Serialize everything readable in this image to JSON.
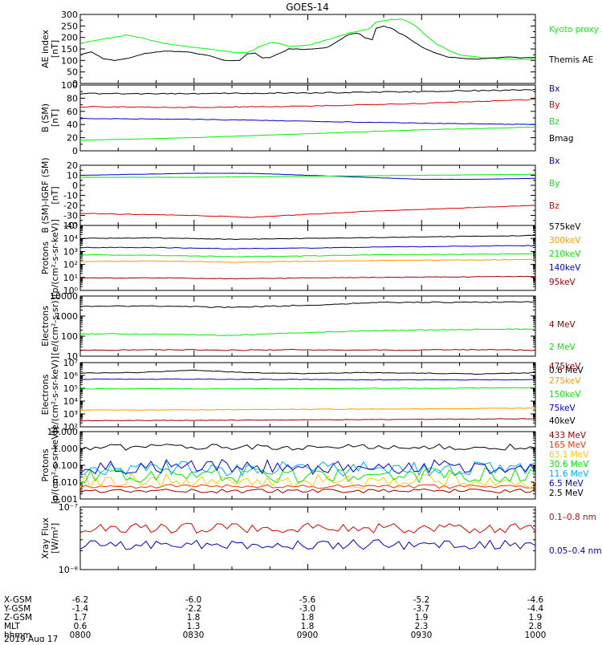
{
  "title": "GOES-14",
  "chart_data": [
    {
      "type": "line",
      "ylabel": "AE index [nT]",
      "ylim": [
        0,
        300
      ],
      "yscale": "linear",
      "yticks": [
        "0",
        "50",
        "100",
        "150",
        "200",
        "250",
        "300"
      ],
      "grid": false,
      "legend_placement": "right",
      "series": [
        {
          "name": "Kyoto proxy AE",
          "color": "#00ff00",
          "x": [
            0,
            2,
            5,
            8,
            12,
            17,
            22,
            28,
            34,
            40,
            44,
            48,
            51,
            55,
            60,
            68,
            72,
            76,
            78,
            81,
            84,
            86,
            88,
            91,
            94,
            97,
            100,
            103,
            106,
            110,
            114,
            118,
            120
          ],
          "values": [
            175,
            180,
            190,
            200,
            210,
            195,
            175,
            160,
            150,
            135,
            135,
            165,
            180,
            160,
            165,
            205,
            225,
            235,
            265,
            275,
            280,
            272,
            255,
            210,
            170,
            145,
            125,
            118,
            112,
            108,
            105,
            105,
            108
          ]
        },
        {
          "name": "Themis AE",
          "color": "#000000",
          "x": [
            0,
            3,
            6,
            9,
            13,
            17,
            22,
            28,
            34,
            38,
            42,
            44,
            46,
            48,
            50,
            55,
            60,
            65,
            68,
            71,
            73,
            75,
            77,
            78,
            80,
            82,
            84,
            86,
            88,
            91,
            94,
            97,
            100,
            104,
            108,
            112,
            116,
            120
          ],
          "values": [
            125,
            138,
            108,
            100,
            110,
            130,
            140,
            138,
            120,
            100,
            100,
            128,
            132,
            110,
            112,
            150,
            148,
            155,
            185,
            215,
            220,
            200,
            190,
            240,
            250,
            238,
            220,
            205,
            180,
            150,
            130,
            115,
            110,
            105,
            110,
            115,
            112,
            113
          ]
        }
      ]
    },
    {
      "type": "line",
      "ylabel": "B (SM) [nT]",
      "ylim": [
        0,
        100
      ],
      "yscale": "linear",
      "yticks": [
        "0",
        "20",
        "40",
        "60",
        "80",
        "100"
      ],
      "legend_placement": "right",
      "series": [
        {
          "name": "Bx",
          "color": "#0000cc",
          "x": [
            0,
            30,
            60,
            90,
            120
          ],
          "values": [
            49,
            48,
            45,
            42,
            40
          ]
        },
        {
          "name": "By",
          "color": "#dd0000",
          "x": [
            0,
            30,
            60,
            90,
            120
          ],
          "values": [
            67,
            66,
            68,
            72,
            78
          ]
        },
        {
          "name": "Bz",
          "color": "#00ee00",
          "x": [
            0,
            30,
            60,
            90,
            120
          ],
          "values": [
            16,
            20,
            26,
            32,
            36
          ]
        },
        {
          "name": "Bmag",
          "color": "#000000",
          "x": [
            0,
            30,
            60,
            90,
            120
          ],
          "values": [
            87,
            87,
            88,
            90,
            93
          ]
        }
      ]
    },
    {
      "type": "line",
      "ylabel": "B (SM)-IGRF (SM) [nT]",
      "ylim": [
        -40,
        20
      ],
      "yscale": "linear",
      "yticks": [
        "-40",
        "-30",
        "-20",
        "-10",
        "0",
        "10",
        "20"
      ],
      "legend_placement": "right",
      "series": [
        {
          "name": "Bx",
          "color": "#0000cc",
          "x": [
            0,
            15,
            30,
            45,
            60,
            75,
            90,
            105,
            120
          ],
          "values": [
            10,
            11,
            12,
            12,
            10,
            8,
            6,
            6,
            7
          ]
        },
        {
          "name": "By",
          "color": "#00ee00",
          "x": [
            0,
            30,
            60,
            90,
            120
          ],
          "values": [
            8,
            8,
            9,
            10,
            11
          ]
        },
        {
          "name": "Bz",
          "color": "#dd0000",
          "x": [
            0,
            15,
            30,
            45,
            60,
            75,
            90,
            105,
            120
          ],
          "values": [
            -28,
            -29,
            -30,
            -32,
            -29,
            -26,
            -24,
            -22,
            -20
          ]
        }
      ]
    },
    {
      "type": "line",
      "ylabel": "Protons [p/(cm²-s-sr-keV)]",
      "ylim": [
        1,
        100000
      ],
      "yscale": "log",
      "yticks": [
        "10⁰",
        "10¹",
        "10²",
        "10³",
        "10⁴",
        "10⁵"
      ],
      "legend_placement": "right",
      "series": [
        {
          "name": "575keV",
          "color": "#000000",
          "x": [
            0,
            20,
            40,
            60,
            80,
            100,
            120
          ],
          "values": [
            10000,
            11000,
            8500,
            10000,
            12000,
            14000,
            17000
          ]
        },
        {
          "name": "300keV",
          "color": "#ff9900",
          "x": [
            0,
            20,
            40,
            60,
            80,
            100,
            120
          ],
          "values": [
            170,
            180,
            150,
            170,
            200,
            220,
            240
          ]
        },
        {
          "name": "210keV",
          "color": "#00ee00",
          "x": [
            0,
            20,
            40,
            60,
            80,
            100,
            120
          ],
          "values": [
            550,
            500,
            400,
            450,
            550,
            600,
            650
          ]
        },
        {
          "name": "140keV",
          "color": "#0000cc",
          "x": [
            0,
            20,
            40,
            60,
            80,
            100,
            120
          ],
          "values": [
            2000,
            2000,
            1600,
            1800,
            2200,
            2500,
            2800
          ]
        },
        {
          "name": "95keV",
          "color": "#990000",
          "x": [
            0,
            20,
            40,
            60,
            80,
            100,
            120
          ],
          "values": [
            9,
            9,
            8,
            9,
            10,
            11,
            12
          ]
        }
      ]
    },
    {
      "type": "line",
      "ylabel": "Electrons [e/(cm²-s-sr)]",
      "ylim": [
        10,
        10000
      ],
      "yscale": "log",
      "yticks": [
        "10",
        "100",
        "1000",
        "10000"
      ],
      "legend_placement": "right",
      "series": [
        {
          "name": "4 MeV",
          "color": "#990000",
          "x": [
            0,
            20,
            40,
            60,
            80,
            100,
            120
          ],
          "values": [
            20,
            21,
            20,
            21,
            20,
            21,
            20
          ]
        },
        {
          "name": "2 MeV",
          "color": "#00ee00",
          "x": [
            0,
            20,
            40,
            60,
            80,
            100,
            120
          ],
          "values": [
            130,
            125,
            110,
            150,
            190,
            210,
            230
          ]
        },
        {
          "name": "0.6 MeV",
          "color": "#000000",
          "x": [
            0,
            20,
            40,
            60,
            80,
            100,
            120
          ],
          "values": [
            3000,
            3200,
            2700,
            3500,
            4800,
            4900,
            5000
          ]
        }
      ]
    },
    {
      "type": "line",
      "ylabel": "Electrons [e/(cm²-s-sr-keV)]",
      "ylim": [
        100,
        10000000
      ],
      "yscale": "log",
      "yticks": [
        "10²",
        "10³",
        "10⁴",
        "10⁵",
        "10⁶",
        "10⁷"
      ],
      "legend_placement": "right",
      "series": [
        {
          "name": "475keV",
          "color": "#990000",
          "x": [
            0,
            30,
            60,
            90,
            120
          ],
          "values": [
            300,
            320,
            350,
            380,
            420
          ]
        },
        {
          "name": "275keV",
          "color": "#ff9900",
          "x": [
            0,
            30,
            60,
            90,
            120
          ],
          "values": [
            2000,
            2100,
            2300,
            2500,
            2800
          ]
        },
        {
          "name": "150keV",
          "color": "#00ee00",
          "x": [
            0,
            30,
            60,
            90,
            120
          ],
          "values": [
            90000,
            92000,
            95000,
            100000,
            110000
          ]
        },
        {
          "name": "75keV",
          "color": "#0000cc",
          "x": [
            0,
            30,
            60,
            90,
            120
          ],
          "values": [
            500000,
            520000,
            480000,
            450000,
            470000
          ]
        },
        {
          "name": "40keV",
          "color": "#000000",
          "x": [
            0,
            15,
            30,
            45,
            60,
            75,
            90,
            105,
            120
          ],
          "values": [
            1500000,
            1700000,
            2500000,
            1600000,
            1400000,
            1700000,
            1500000,
            1300000,
            1600000
          ]
        }
      ]
    },
    {
      "type": "line",
      "ylabel": "Protons [p/(cm²-s-sr-keV)]",
      "ylim": [
        0.001,
        10
      ],
      "yscale": "log",
      "yticks": [
        "0.001",
        "0.010",
        "0.100",
        "1.000",
        "10.000"
      ],
      "legend_placement": "right",
      "series": [
        {
          "name": "433 MeV",
          "color": "#990000",
          "level": 0.003
        },
        {
          "name": "165 MeV",
          "color": "#ff3300",
          "level": 0.0055
        },
        {
          "name": "63.1 MeV",
          "color": "#ffcc00",
          "level": 0.012
        },
        {
          "name": "30.6 MeV",
          "color": "#00ee00",
          "level": 0.025
        },
        {
          "name": "11.6 MeV",
          "color": "#00aaff",
          "level": 0.06
        },
        {
          "name": "6.5 MeV",
          "color": "#0000cc",
          "level": 0.08
        },
        {
          "name": "2.5 MeV",
          "color": "#000000",
          "level": 1.2
        }
      ]
    },
    {
      "type": "line",
      "ylabel": "Xray Flux [W/m²]",
      "ylim": [
        1e-08,
        1e-07
      ],
      "yscale": "log",
      "yticks": [
        "10⁻⁸",
        "10⁻⁷"
      ],
      "legend_placement": "right",
      "series": [
        {
          "name": "0.1–0.8 nm",
          "color": "#dd0000",
          "level": 4.6e-08
        },
        {
          "name": "0.05–0.4 nm",
          "color": "#0000cc",
          "level": 2.5e-08
        }
      ]
    }
  ],
  "x_axis": {
    "rows": [
      {
        "label": "X-GSM",
        "values": [
          "-6.2",
          "-6.0",
          "-5.6",
          "-5.2",
          "-4.6"
        ]
      },
      {
        "label": "Y-GSM",
        "values": [
          "-1.4",
          "-2.2",
          "-3.0",
          "-3.7",
          "-4.4"
        ]
      },
      {
        "label": "Z-GSM",
        "values": [
          "1.7",
          "1.8",
          "1.8",
          "1.9",
          "1.9"
        ]
      },
      {
        "label": "MLT",
        "values": [
          "0.6",
          "1.3",
          "1.8",
          "2.3",
          "2.8"
        ]
      },
      {
        "label": "hhmm",
        "values": [
          "0800",
          "0830",
          "0900",
          "0930",
          "1000"
        ]
      }
    ],
    "date": "2019 Aug 17"
  }
}
